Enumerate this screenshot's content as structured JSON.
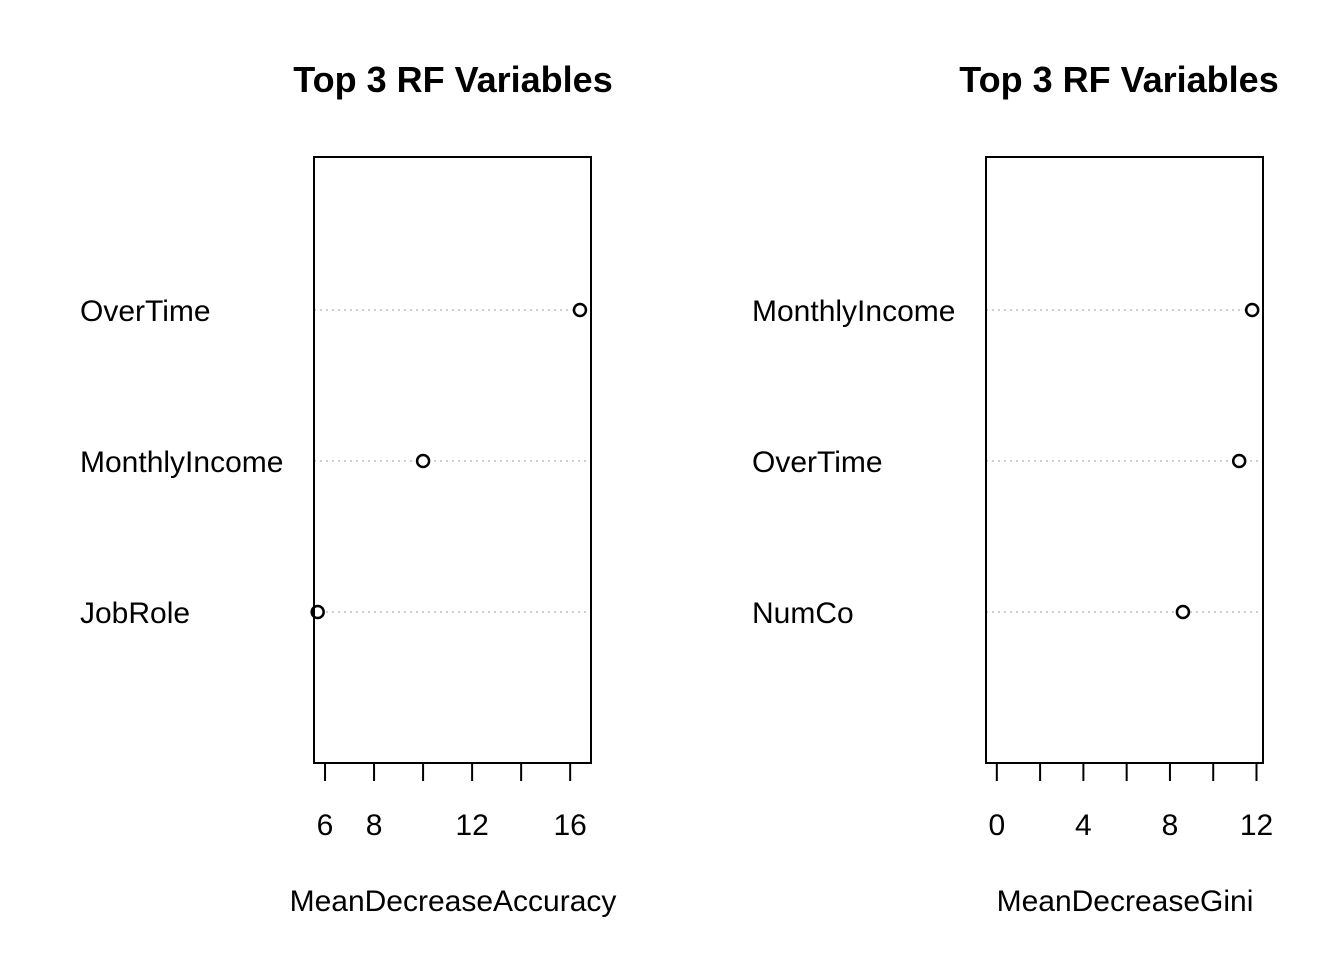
{
  "chart_data": [
    {
      "type": "dotplot",
      "title": "Top 3 RF Variables",
      "xlabel": "MeanDecreaseAccuracy",
      "ylabel": "",
      "xlim": [
        5.55,
        16.85
      ],
      "xticks": [
        6,
        8,
        10,
        12,
        14,
        16
      ],
      "xtick_labels": [
        "6",
        "8",
        "",
        "12",
        "",
        "16"
      ],
      "categories": [
        "OverTime",
        "MonthlyIncome",
        "JobRole"
      ],
      "values": [
        16.4,
        10.0,
        5.7
      ],
      "grid": "dotted horizontal",
      "colors": {
        "axis": "#000000",
        "grid": "#bebebe",
        "point": "#000000"
      }
    },
    {
      "type": "dotplot",
      "title": "Top 3 RF Variables",
      "xlabel": "MeanDecreaseGini",
      "ylabel": "",
      "xlim": [
        -0.5,
        12.3
      ],
      "xticks": [
        0,
        2,
        4,
        6,
        8,
        10,
        12
      ],
      "xtick_labels": [
        "0",
        "",
        "4",
        "",
        "8",
        "",
        "12"
      ],
      "categories": [
        "MonthlyIncome",
        "OverTime",
        "NumCo"
      ],
      "values": [
        11.8,
        11.2,
        8.6
      ],
      "grid": "dotted horizontal",
      "colors": {
        "axis": "#000000",
        "grid": "#bebebe",
        "point": "#000000"
      }
    }
  ]
}
